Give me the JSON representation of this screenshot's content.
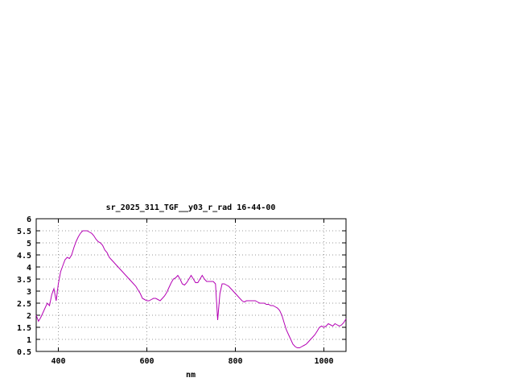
{
  "page": {
    "background": "#ffffff"
  },
  "chart_data": {
    "type": "line",
    "title": "sr_2025_311_TGF__y03_r_rad 16-44-00",
    "xlabel": "nm",
    "ylabel": "",
    "xlim": [
      350,
      1050
    ],
    "ylim": [
      0.5,
      6
    ],
    "xticks": [
      400,
      600,
      800,
      1000
    ],
    "yticks": [
      0.5,
      1,
      1.5,
      2,
      2.5,
      3,
      3.5,
      4,
      4.5,
      5,
      5.5,
      6
    ],
    "grid": true,
    "legend": "none",
    "line_color": "#b400b4",
    "series": [
      {
        "name": "sr_2025_311_TGF__y03_r_rad 16-44-00",
        "x": [
          350,
          355,
          360,
          365,
          370,
          375,
          380,
          385,
          390,
          395,
          400,
          405,
          410,
          415,
          420,
          425,
          430,
          435,
          440,
          445,
          450,
          455,
          460,
          465,
          470,
          475,
          480,
          485,
          490,
          495,
          500,
          505,
          510,
          515,
          520,
          525,
          530,
          535,
          540,
          545,
          550,
          555,
          560,
          565,
          570,
          575,
          580,
          585,
          590,
          595,
          600,
          605,
          610,
          615,
          620,
          625,
          630,
          635,
          640,
          645,
          650,
          655,
          660,
          665,
          670,
          675,
          680,
          685,
          690,
          695,
          700,
          705,
          710,
          715,
          720,
          725,
          730,
          735,
          740,
          745,
          750,
          755,
          760,
          765,
          770,
          775,
          780,
          785,
          790,
          795,
          800,
          805,
          810,
          815,
          820,
          825,
          830,
          835,
          840,
          845,
          850,
          855,
          860,
          865,
          870,
          875,
          880,
          885,
          890,
          895,
          900,
          905,
          910,
          915,
          920,
          925,
          930,
          935,
          940,
          945,
          950,
          955,
          960,
          965,
          970,
          975,
          980,
          985,
          990,
          995,
          1000,
          1005,
          1010,
          1015,
          1020,
          1025,
          1030,
          1035,
          1040,
          1045,
          1050
        ],
        "y": [
          2.0,
          1.75,
          1.9,
          2.1,
          2.3,
          2.5,
          2.4,
          2.85,
          3.1,
          2.6,
          3.3,
          3.8,
          4.05,
          4.3,
          4.4,
          4.35,
          4.5,
          4.8,
          5.05,
          5.25,
          5.4,
          5.5,
          5.5,
          5.5,
          5.45,
          5.4,
          5.3,
          5.15,
          5.05,
          5.0,
          4.9,
          4.7,
          4.6,
          4.4,
          4.3,
          4.2,
          4.1,
          4.0,
          3.9,
          3.8,
          3.7,
          3.6,
          3.5,
          3.4,
          3.3,
          3.2,
          3.05,
          2.9,
          2.7,
          2.65,
          2.6,
          2.6,
          2.65,
          2.7,
          2.7,
          2.65,
          2.6,
          2.7,
          2.8,
          2.95,
          3.15,
          3.35,
          3.5,
          3.55,
          3.65,
          3.5,
          3.3,
          3.25,
          3.35,
          3.5,
          3.65,
          3.5,
          3.35,
          3.35,
          3.5,
          3.65,
          3.5,
          3.4,
          3.4,
          3.4,
          3.4,
          3.3,
          1.8,
          2.9,
          3.3,
          3.3,
          3.25,
          3.2,
          3.1,
          3.0,
          2.9,
          2.8,
          2.7,
          2.6,
          2.55,
          2.6,
          2.6,
          2.6,
          2.6,
          2.6,
          2.55,
          2.5,
          2.5,
          2.5,
          2.45,
          2.45,
          2.4,
          2.4,
          2.35,
          2.3,
          2.2,
          2.0,
          1.7,
          1.4,
          1.2,
          1.0,
          0.8,
          0.7,
          0.65,
          0.65,
          0.7,
          0.75,
          0.8,
          0.9,
          1.0,
          1.1,
          1.2,
          1.35,
          1.5,
          1.55,
          1.5,
          1.55,
          1.65,
          1.6,
          1.55,
          1.65,
          1.6,
          1.55,
          1.6,
          1.7,
          1.85
        ]
      }
    ]
  }
}
